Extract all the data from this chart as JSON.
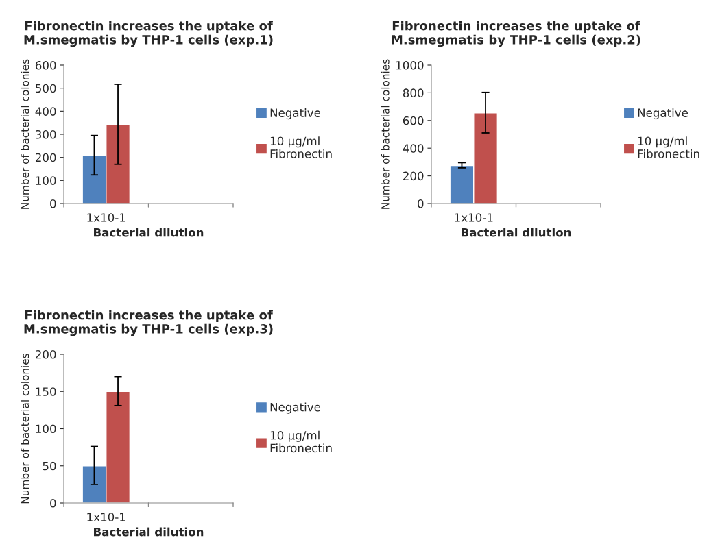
{
  "chart_data": [
    {
      "type": "bar",
      "title": "Fibronectin increases the uptake of\nM.smegmatis by THP-1 cells (exp.1)",
      "xlabel": "Bacterial dilution",
      "ylabel": "Number of bacterial colonies",
      "categories": [
        "1x10-1",
        null
      ],
      "series": [
        {
          "name": "Negative",
          "color": "#4f81bd",
          "values": [
            210,
            null
          ],
          "errors": [
            [
              124,
              295
            ],
            null
          ]
        },
        {
          "name": "10 µg/ml\nFibronectin",
          "color": "#c0504d",
          "values": [
            343,
            null
          ],
          "errors": [
            [
              170,
              517
            ],
            null
          ]
        }
      ],
      "ylim": [
        0,
        600
      ],
      "yticks": [
        0,
        100,
        200,
        300,
        400,
        500,
        600
      ],
      "legend": "right",
      "grid": false
    },
    {
      "type": "bar",
      "title": "Fibronectin increases the uptake of\nM.smegmatis by THP-1 cells (exp.2)",
      "xlabel": "Bacterial dilution",
      "ylabel": "Number of bacterial colonies",
      "categories": [
        "1x10-1",
        null
      ],
      "series": [
        {
          "name": "Negative",
          "color": "#4f81bd",
          "values": [
            275,
            null
          ],
          "errors": [
            [
              258,
              295
            ],
            null
          ]
        },
        {
          "name": "10 µg/ml\nFibronectin",
          "color": "#c0504d",
          "values": [
            655,
            null
          ],
          "errors": [
            [
              510,
              803
            ],
            null
          ]
        }
      ],
      "ylim": [
        0,
        1000
      ],
      "yticks": [
        0,
        200,
        400,
        600,
        800,
        1000
      ],
      "legend": "right",
      "grid": false
    },
    {
      "type": "bar",
      "title": "Fibronectin increases the uptake of\nM.smegmatis by THP-1 cells (exp.3)",
      "xlabel": "Bacterial dilution",
      "ylabel": "Number of bacterial colonies",
      "categories": [
        "1x10-1",
        null
      ],
      "series": [
        {
          "name": "Negative",
          "color": "#4f81bd",
          "values": [
            50,
            null
          ],
          "errors": [
            [
              25,
              76
            ],
            null
          ]
        },
        {
          "name": "10 µg/ml\nFibronectin",
          "color": "#c0504d",
          "values": [
            150,
            null
          ],
          "errors": [
            [
              131,
              170
            ],
            null
          ]
        }
      ],
      "ylim": [
        0,
        200
      ],
      "yticks": [
        0,
        50,
        100,
        150,
        200
      ],
      "legend": "right",
      "grid": false
    }
  ]
}
